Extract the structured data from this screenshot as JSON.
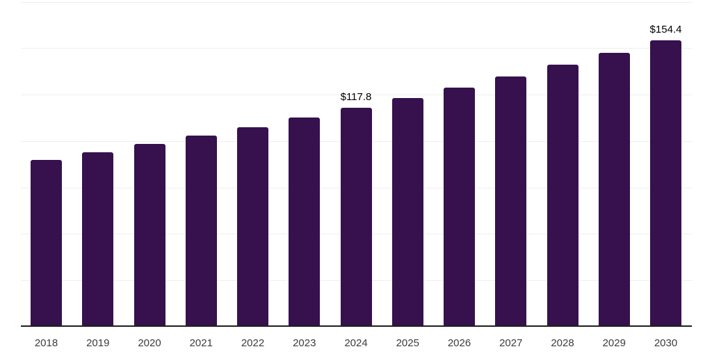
{
  "chart_data": {
    "type": "bar",
    "title": "",
    "xlabel": "",
    "ylabel": "",
    "categories": [
      "2018",
      "2019",
      "2020",
      "2021",
      "2022",
      "2023",
      "2024",
      "2025",
      "2026",
      "2027",
      "2028",
      "2029",
      "2030"
    ],
    "values": [
      89.9,
      94.0,
      98.4,
      102.9,
      107.6,
      112.6,
      117.8,
      123.2,
      128.9,
      134.8,
      141.1,
      147.6,
      154.4
    ],
    "data_labels": [
      "",
      "",
      "",
      "",
      "",
      "",
      "$117.8",
      "",
      "",
      "",
      "",
      "",
      "$154.4"
    ],
    "ylim": [
      0,
      175
    ],
    "gridline_step": 25,
    "grid": true,
    "legend": "none",
    "colors": {
      "bar": "#36114d",
      "axis_line": "#1f1f1f",
      "gridline": "#efefef",
      "tick_label": "#3c3c3c",
      "data_label": "#000000",
      "background": "#ffffff"
    }
  }
}
